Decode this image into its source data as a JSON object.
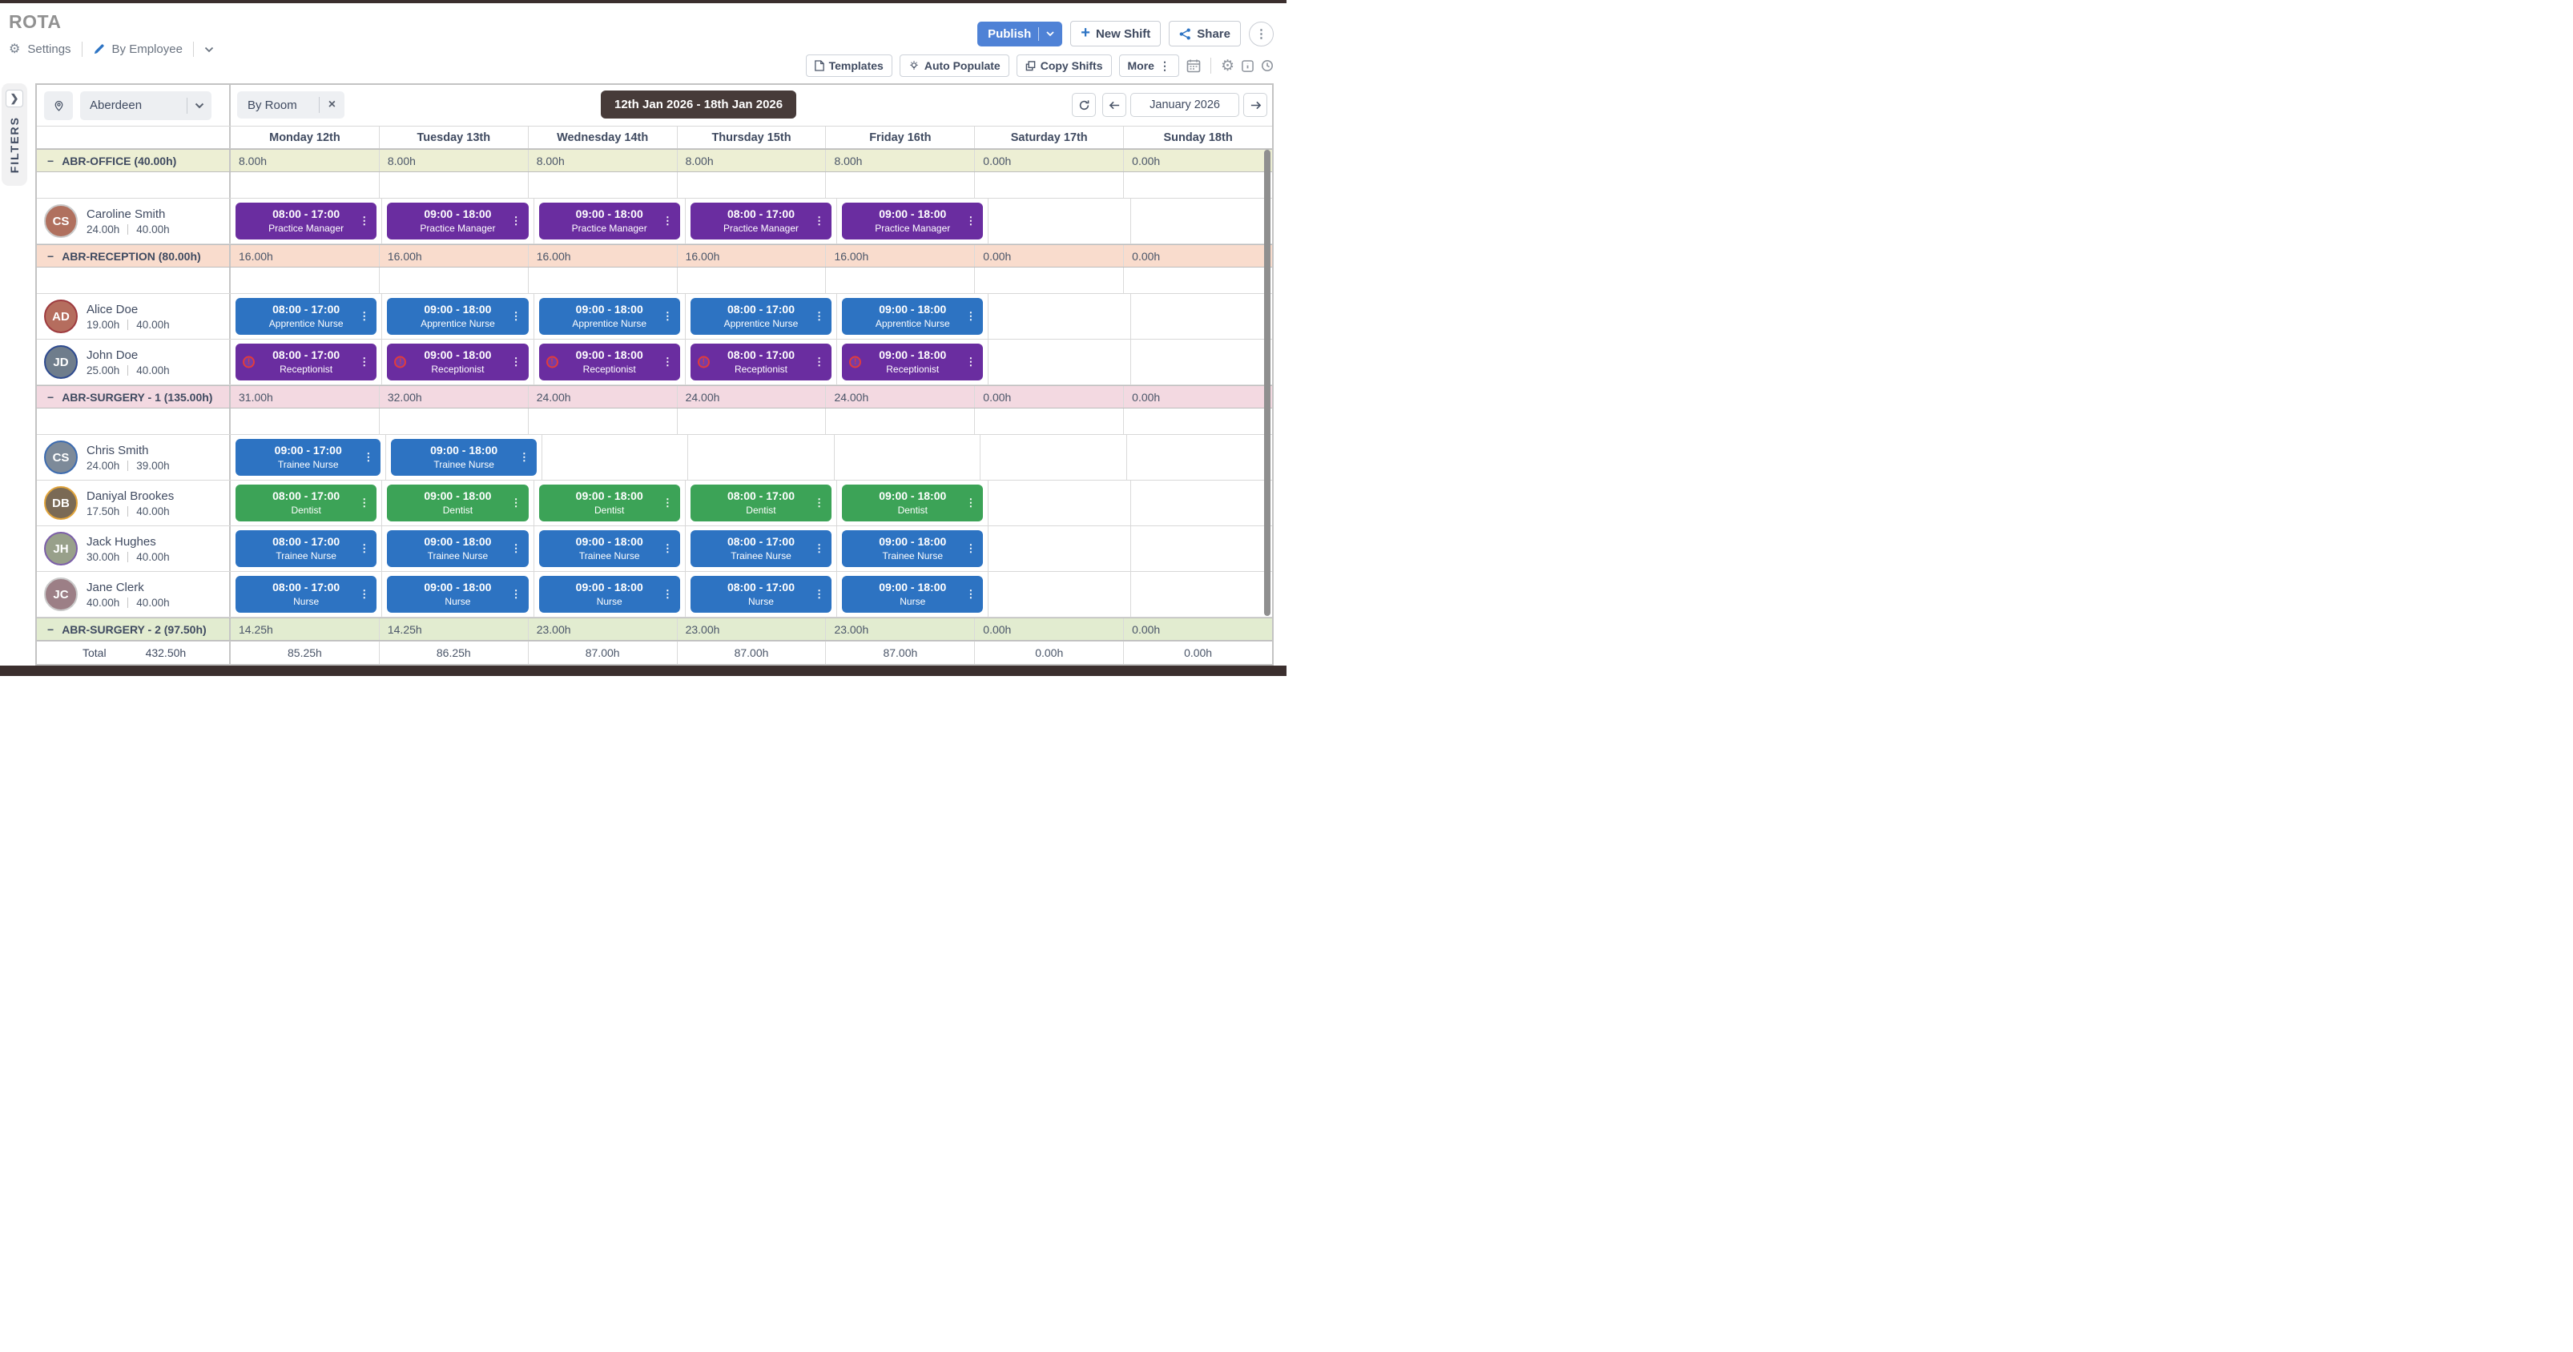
{
  "header": {
    "title": "ROTA",
    "settings": "Settings",
    "view_mode": "By Employee",
    "publish": "Publish",
    "new_shift": "New Shift",
    "share": "Share",
    "templates": "Templates",
    "auto_populate": "Auto Populate",
    "copy_shifts": "Copy Shifts",
    "more": "More"
  },
  "filters_tab": "FILTERS",
  "filter_bar": {
    "location": "Aberdeen",
    "room_filter": "By Room",
    "date_range": "12th Jan 2026 - 18th Jan 2026",
    "month": "January 2026"
  },
  "days": [
    "Monday 12th",
    "Tuesday 13th",
    "Wednesday 14th",
    "Thursday 15th",
    "Friday 16th",
    "Saturday 17th",
    "Sunday 18th"
  ],
  "icons": {
    "gear": "⚙",
    "kebab": "⋮",
    "minus": "−",
    "close": "×",
    "plus": "+",
    "filters_chevron": "❯",
    "warning": "!"
  },
  "colors": {
    "accent_blue": "#2d74c4",
    "publish_blue": "#4f82d6",
    "shift_purple": "#6a2da0",
    "shift_blue": "#2d73c2",
    "shift_green": "#3ca357",
    "bar_dark": "#3b2f2e",
    "pill_dark": "#473b39",
    "warning_red": "#e23b3b"
  },
  "sections": [
    {
      "label": "ABR-OFFICE (40.00h)",
      "bg": "#edefd4",
      "day_totals": [
        "8.00h",
        "8.00h",
        "8.00h",
        "8.00h",
        "8.00h",
        "0.00h",
        "0.00h"
      ],
      "employees": [
        {
          "name": "Caroline Smith",
          "scheduled": "24.00h",
          "contracted": "40.00h",
          "initials": "CS",
          "avatar_bg": "#b0705e",
          "ring": "#c9c9c9",
          "shifts": [
            {
              "time": "08:00 - 17:00",
              "role": "Practice Manager",
              "color": "purple"
            },
            {
              "time": "09:00 - 18:00",
              "role": "Practice Manager",
              "color": "purple"
            },
            {
              "time": "09:00 - 18:00",
              "role": "Practice Manager",
              "color": "purple"
            },
            {
              "time": "08:00 - 17:00",
              "role": "Practice Manager",
              "color": "purple"
            },
            {
              "time": "09:00 - 18:00",
              "role": "Practice Manager",
              "color": "purple"
            },
            null,
            null
          ]
        }
      ]
    },
    {
      "label": "ABR-RECEPTION (80.00h)",
      "bg": "#f9dccd",
      "day_totals": [
        "16.00h",
        "16.00h",
        "16.00h",
        "16.00h",
        "16.00h",
        "0.00h",
        "0.00h"
      ],
      "employees": [
        {
          "name": "Alice Doe",
          "scheduled": "19.00h",
          "contracted": "40.00h",
          "initials": "AD",
          "avatar_bg": "#b56d5e",
          "ring": "#9e3b3f",
          "shifts": [
            {
              "time": "08:00 - 17:00",
              "role": "Apprentice Nurse",
              "color": "blue"
            },
            {
              "time": "09:00 - 18:00",
              "role": "Apprentice Nurse",
              "color": "blue"
            },
            {
              "time": "09:00 - 18:00",
              "role": "Apprentice Nurse",
              "color": "blue"
            },
            {
              "time": "08:00 - 17:00",
              "role": "Apprentice Nurse",
              "color": "blue"
            },
            {
              "time": "09:00 - 18:00",
              "role": "Apprentice Nurse",
              "color": "blue"
            },
            null,
            null
          ]
        },
        {
          "name": "John Doe",
          "scheduled": "25.00h",
          "contracted": "40.00h",
          "initials": "JD",
          "avatar_bg": "#6f7d8c",
          "ring": "#2e4a8f",
          "shifts": [
            {
              "time": "08:00 - 17:00",
              "role": "Receptionist",
              "color": "purple",
              "warning": true
            },
            {
              "time": "09:00 - 18:00",
              "role": "Receptionist",
              "color": "purple",
              "warning": true
            },
            {
              "time": "09:00 - 18:00",
              "role": "Receptionist",
              "color": "purple",
              "warning": true
            },
            {
              "time": "08:00 - 17:00",
              "role": "Receptionist",
              "color": "purple",
              "warning": true
            },
            {
              "time": "09:00 - 18:00",
              "role": "Receptionist",
              "color": "purple",
              "warning": true
            },
            null,
            null
          ]
        }
      ]
    },
    {
      "label": "ABR-SURGERY - 1 (135.00h)",
      "bg": "#f3d9e1",
      "day_totals": [
        "31.00h",
        "32.00h",
        "24.00h",
        "24.00h",
        "24.00h",
        "0.00h",
        "0.00h"
      ],
      "employees": [
        {
          "name": "Chris Smith",
          "scheduled": "24.00h",
          "contracted": "39.00h",
          "initials": "CS",
          "avatar_bg": "#7d8a99",
          "ring": "#3c6bb0",
          "shifts": [
            {
              "time": "09:00 - 17:00",
              "role": "Trainee Nurse",
              "color": "blue"
            },
            {
              "time": "09:00 - 18:00",
              "role": "Trainee Nurse",
              "color": "blue"
            },
            null,
            null,
            null,
            null,
            null
          ]
        },
        {
          "name": "Daniyal Brookes",
          "scheduled": "17.50h",
          "contracted": "40.00h",
          "initials": "DB",
          "avatar_bg": "#7a6a55",
          "ring": "#e0a33a",
          "shifts": [
            {
              "time": "08:00 - 17:00",
              "role": "Dentist",
              "color": "green"
            },
            {
              "time": "09:00 - 18:00",
              "role": "Dentist",
              "color": "green"
            },
            {
              "time": "09:00 - 18:00",
              "role": "Dentist",
              "color": "green"
            },
            {
              "time": "08:00 - 17:00",
              "role": "Dentist",
              "color": "green"
            },
            {
              "time": "09:00 - 18:00",
              "role": "Dentist",
              "color": "green"
            },
            null,
            null
          ]
        },
        {
          "name": "Jack Hughes",
          "scheduled": "30.00h",
          "contracted": "40.00h",
          "initials": "JH",
          "avatar_bg": "#98a08a",
          "ring": "#7b5ea8",
          "shifts": [
            {
              "time": "08:00 - 17:00",
              "role": "Trainee Nurse",
              "color": "blue"
            },
            {
              "time": "09:00 - 18:00",
              "role": "Trainee Nurse",
              "color": "blue"
            },
            {
              "time": "09:00 - 18:00",
              "role": "Trainee Nurse",
              "color": "blue"
            },
            {
              "time": "08:00 - 17:00",
              "role": "Trainee Nurse",
              "color": "blue"
            },
            {
              "time": "09:00 - 18:00",
              "role": "Trainee Nurse",
              "color": "blue"
            },
            null,
            null
          ]
        },
        {
          "name": "Jane Clerk",
          "scheduled": "40.00h",
          "contracted": "40.00h",
          "initials": "JC",
          "avatar_bg": "#9c7f86",
          "ring": "#c9c9c9",
          "shifts": [
            {
              "time": "08:00 - 17:00",
              "role": "Nurse",
              "color": "blue"
            },
            {
              "time": "09:00 - 18:00",
              "role": "Nurse",
              "color": "blue"
            },
            {
              "time": "09:00 - 18:00",
              "role": "Nurse",
              "color": "blue"
            },
            {
              "time": "08:00 - 17:00",
              "role": "Nurse",
              "color": "blue"
            },
            {
              "time": "09:00 - 18:00",
              "role": "Nurse",
              "color": "blue"
            },
            null,
            null
          ]
        }
      ]
    },
    {
      "label": "ABR-SURGERY - 2 (97.50h)",
      "bg": "#e2ecd0",
      "day_totals": [
        "14.25h",
        "14.25h",
        "23.00h",
        "23.00h",
        "23.00h",
        "0.00h",
        "0.00h"
      ],
      "spacer": false,
      "employees": []
    }
  ],
  "total_row": {
    "label": "Total",
    "total": "432.50h",
    "values": [
      "85.25h",
      "86.25h",
      "87.00h",
      "87.00h",
      "87.00h",
      "0.00h",
      "0.00h"
    ]
  }
}
